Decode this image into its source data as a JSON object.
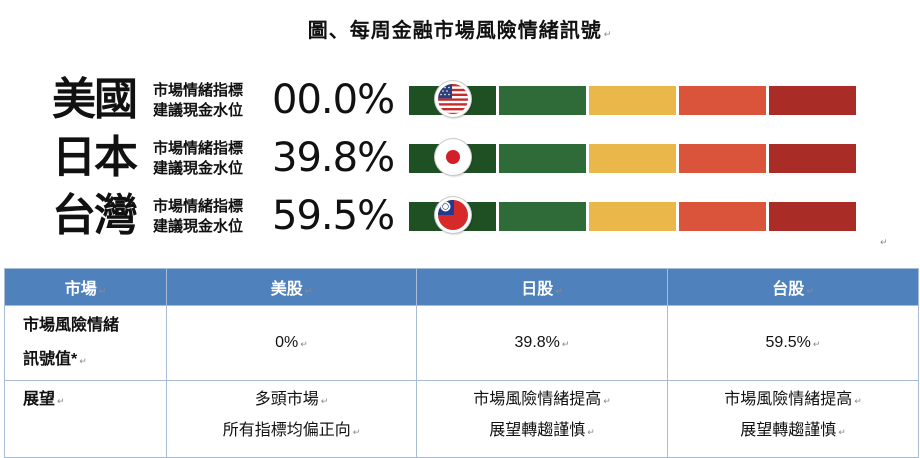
{
  "figure": {
    "title": "圖、每周金融市場風險情緒訊號",
    "label_line1": "市場情緒指標",
    "label_line2": "建議現金水位",
    "rows": [
      {
        "country": "美國",
        "cash_level": "00.0%",
        "flag_icon": "usa-flag-icon",
        "indicator_position": 0.0
      },
      {
        "country": "日本",
        "cash_level": "39.8%",
        "flag_icon": "japan-flag-icon",
        "indicator_position": 0.0
      },
      {
        "country": "台灣",
        "cash_level": "59.5%",
        "flag_icon": "taiwan-flag-icon",
        "indicator_position": 0.0
      }
    ],
    "signal_colors": [
      "#1f5024",
      "#2e6b38",
      "#eab84a",
      "#d9543a",
      "#a92c27"
    ]
  },
  "table": {
    "headers": [
      "市場",
      "美股",
      "日股",
      "台股"
    ],
    "row_signal": {
      "label_line1": "市場風險情緒",
      "label_line2": "訊號值*",
      "values": [
        "0%",
        "39.8%",
        "59.5%"
      ]
    },
    "row_outlook": {
      "label": "展望",
      "values": [
        {
          "line1": "多頭市場",
          "line2": "所有指標均偏正向"
        },
        {
          "line1": "市場風險情緒提高",
          "line2": "展望轉趨謹慎"
        },
        {
          "line1": "市場風險情緒提高",
          "line2": "展望轉趨謹慎"
        }
      ]
    },
    "header_color": "#4f81bd"
  },
  "paragraph_mark": "↵"
}
